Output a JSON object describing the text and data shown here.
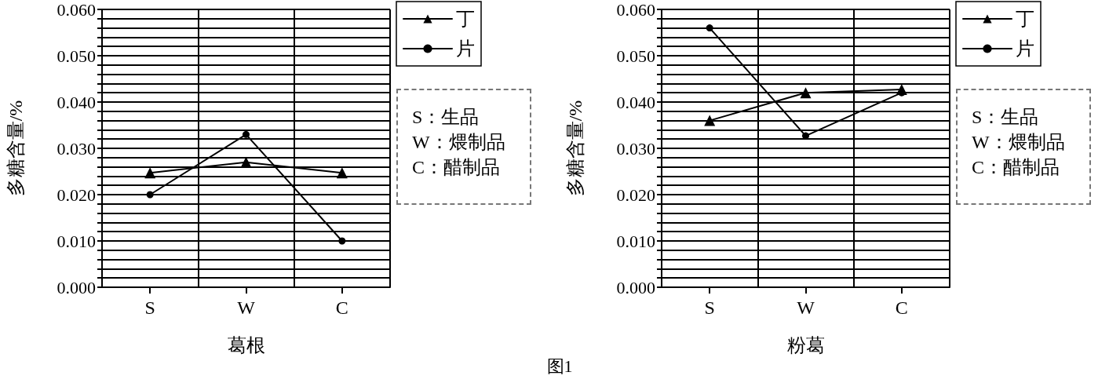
{
  "chart_data": [
    {
      "type": "line",
      "xlabel": "葛根",
      "ylabel": "多糖含量/%",
      "categories": [
        "S",
        "W",
        "C"
      ],
      "series": [
        {
          "name": "丁",
          "color": "#000000",
          "marker": "triangle",
          "values": [
            0.0247,
            0.027,
            0.0247
          ]
        },
        {
          "name": "片",
          "color": "#000000",
          "marker": "circle",
          "values": [
            0.02,
            0.033,
            0.01
          ]
        }
      ],
      "ylim": [
        0,
        0.06
      ],
      "yticks": [
        {
          "value": 0,
          "label": "0.000"
        },
        {
          "value": 0.002,
          "label": null
        },
        {
          "value": 0.004,
          "label": null
        },
        {
          "value": 0.006,
          "label": null
        },
        {
          "value": 0.008,
          "label": null
        },
        {
          "value": 0.01,
          "label": "0.010"
        },
        {
          "value": 0.012,
          "label": null
        },
        {
          "value": 0.014,
          "label": null
        },
        {
          "value": 0.016,
          "label": null
        },
        {
          "value": 0.018,
          "label": null
        },
        {
          "value": 0.02,
          "label": "0.020"
        },
        {
          "value": 0.022,
          "label": null
        },
        {
          "value": 0.024,
          "label": null
        },
        {
          "value": 0.026,
          "label": null
        },
        {
          "value": 0.028,
          "label": null
        },
        {
          "value": 0.03,
          "label": "0.030"
        },
        {
          "value": 0.032,
          "label": null
        },
        {
          "value": 0.034,
          "label": null
        },
        {
          "value": 0.036,
          "label": null
        },
        {
          "value": 0.038,
          "label": null
        },
        {
          "value": 0.04,
          "label": "0.040"
        },
        {
          "value": 0.042,
          "label": null
        },
        {
          "value": 0.044,
          "label": null
        },
        {
          "value": 0.046,
          "label": null
        },
        {
          "value": 0.048,
          "label": null
        },
        {
          "value": 0.05,
          "label": "0.050"
        },
        {
          "value": 0.052,
          "label": null
        },
        {
          "value": 0.054,
          "label": null
        },
        {
          "value": 0.056,
          "label": null
        },
        {
          "value": 0.058,
          "label": null
        },
        {
          "value": 0.06,
          "label": "0.060"
        }
      ],
      "grid": true,
      "legend": "top right",
      "line_style": "solid",
      "annotations": [
        "S：生品",
        "W：煨制品",
        "C：醋制品"
      ]
    },
    {
      "type": "line",
      "xlabel": "粉葛",
      "ylabel": "多糖含量/%",
      "categories": [
        "S",
        "W",
        "C"
      ],
      "series": [
        {
          "name": "丁",
          "color": "#000000",
          "marker": "triangle",
          "values": [
            0.036,
            0.042,
            0.0427
          ]
        },
        {
          "name": "片",
          "color": "#000000",
          "marker": "circle",
          "values": [
            0.056,
            0.0327,
            0.042
          ]
        }
      ],
      "ylim": [
        0,
        0.06
      ],
      "yticks": [
        {
          "value": 0,
          "label": "0.000"
        },
        {
          "value": 0.002,
          "label": null
        },
        {
          "value": 0.004,
          "label": null
        },
        {
          "value": 0.006,
          "label": null
        },
        {
          "value": 0.008,
          "label": null
        },
        {
          "value": 0.01,
          "label": "0.010"
        },
        {
          "value": 0.012,
          "label": null
        },
        {
          "value": 0.014,
          "label": null
        },
        {
          "value": 0.016,
          "label": null
        },
        {
          "value": 0.018,
          "label": null
        },
        {
          "value": 0.02,
          "label": "0.020"
        },
        {
          "value": 0.022,
          "label": null
        },
        {
          "value": 0.024,
          "label": null
        },
        {
          "value": 0.026,
          "label": null
        },
        {
          "value": 0.028,
          "label": null
        },
        {
          "value": 0.03,
          "label": "0.030"
        },
        {
          "value": 0.032,
          "label": null
        },
        {
          "value": 0.034,
          "label": null
        },
        {
          "value": 0.036,
          "label": null
        },
        {
          "value": 0.038,
          "label": null
        },
        {
          "value": 0.04,
          "label": "0.040"
        },
        {
          "value": 0.042,
          "label": null
        },
        {
          "value": 0.044,
          "label": null
        },
        {
          "value": 0.046,
          "label": null
        },
        {
          "value": 0.048,
          "label": null
        },
        {
          "value": 0.05,
          "label": "0.050"
        },
        {
          "value": 0.052,
          "label": null
        },
        {
          "value": 0.054,
          "label": null
        },
        {
          "value": 0.056,
          "label": null
        },
        {
          "value": 0.058,
          "label": null
        },
        {
          "value": 0.06,
          "label": "0.060"
        }
      ],
      "grid": true,
      "legend": "top right",
      "line_style": "solid",
      "annotations": [
        "S：生品",
        "W：煨制品",
        "C：醋制品",
        "图1"
      ]
    }
  ]
}
